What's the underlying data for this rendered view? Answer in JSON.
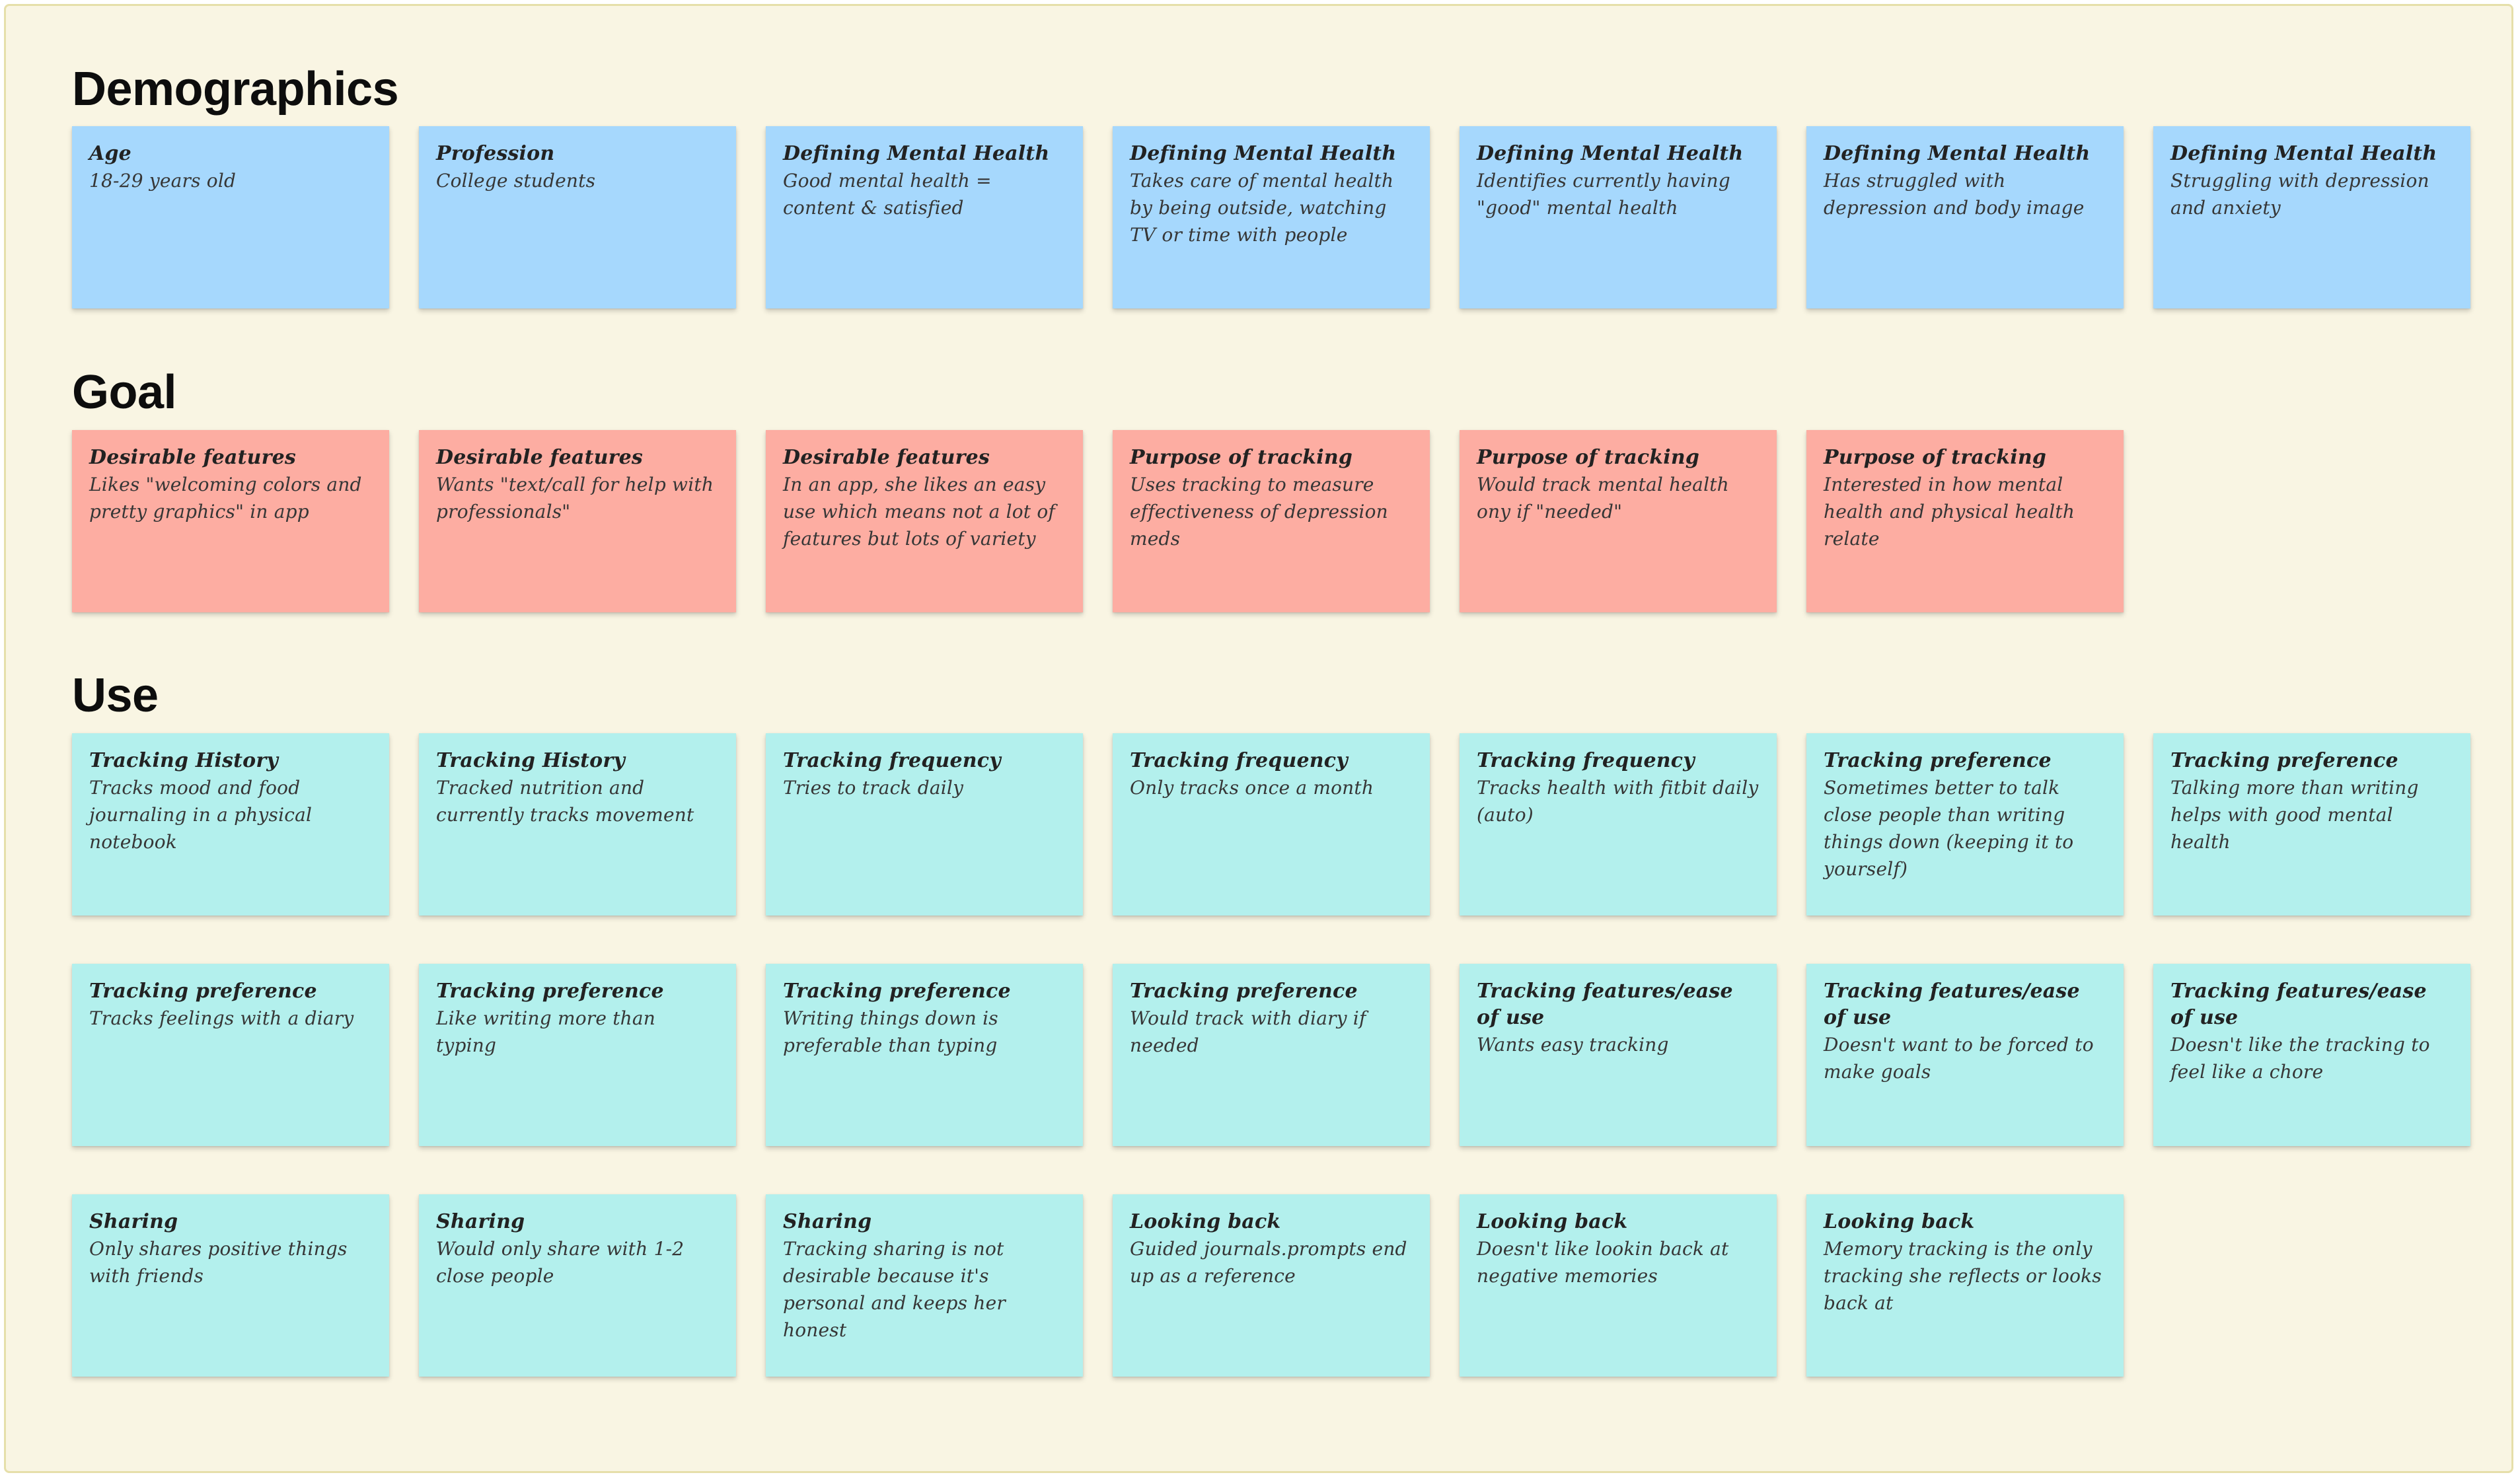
{
  "sections": {
    "demographics": {
      "title": "Demographics",
      "notes": [
        {
          "title": "Age",
          "body": "18-29 years old"
        },
        {
          "title": "Profession",
          "body": "College students"
        },
        {
          "title": "Defining Mental Health",
          "body": "Good mental health = content & satisfied"
        },
        {
          "title": "Defining Mental Health",
          "body": "Takes care of mental health by being outside, watching TV or time with people"
        },
        {
          "title": "Defining Mental Health",
          "body": "Identifies currently having \"good\" mental health"
        },
        {
          "title": "Defining Mental Health",
          "body": "Has struggled with depression and body image"
        },
        {
          "title": "Defining Mental Health",
          "body": "Struggling with depression and anxiety"
        }
      ]
    },
    "goal": {
      "title": "Goal",
      "notes": [
        {
          "title": "Desirable features",
          "body": "Likes \"welcoming colors and pretty graphics\" in app"
        },
        {
          "title": "Desirable features",
          "body": "Wants \"text/call for help with professionals\""
        },
        {
          "title": "Desirable features",
          "body": "In an app, she likes an easy use which means not a lot of features but lots of variety"
        },
        {
          "title": "Purpose of tracking",
          "body": "Uses tracking to measure effectiveness of depression meds"
        },
        {
          "title": "Purpose of tracking",
          "body": "Would track mental health ony if \"needed\""
        },
        {
          "title": "Purpose of tracking",
          "body": "Interested in how mental health and physical health relate"
        }
      ]
    },
    "use": {
      "title": "Use",
      "rows": [
        [
          {
            "title": "Tracking History",
            "body": "Tracks mood and food journaling in a physical notebook"
          },
          {
            "title": "Tracking History",
            "body": "Tracked nutrition and currently tracks movement"
          },
          {
            "title": "Tracking frequency",
            "body": "Tries to track daily"
          },
          {
            "title": "Tracking frequency",
            "body": "Only tracks once a month"
          },
          {
            "title": "Tracking frequency",
            "body": "Tracks health with fitbit daily (auto)"
          },
          {
            "title": "Tracking preference",
            "body": "Sometimes better to talk close people than writing things down (keeping it to yourself)"
          },
          {
            "title": "Tracking preference",
            "body": "Talking more than writing helps with good mental health"
          }
        ],
        [
          {
            "title": "Tracking preference",
            "body": "Tracks feelings with a diary"
          },
          {
            "title": "Tracking preference",
            "body": "Like writing more than typing"
          },
          {
            "title": "Tracking preference",
            "body": "Writing things down is preferable than typing"
          },
          {
            "title": "Tracking preference",
            "body": "Would track with diary if needed"
          },
          {
            "title": "Tracking features/ease of use",
            "body": "Wants easy tracking"
          },
          {
            "title": "Tracking features/ease of use",
            "body": "Doesn't want to be forced to make goals"
          },
          {
            "title": "Tracking features/ease of use",
            "body": "Doesn't like the tracking to feel like a chore"
          }
        ],
        [
          {
            "title": "Sharing",
            "body": "Only shares positive things with friends"
          },
          {
            "title": "Sharing",
            "body": "Would only share with 1-2 close people"
          },
          {
            "title": "Sharing",
            "body": "Tracking sharing is not desirable because it's personal and keeps her honest"
          },
          {
            "title": "Looking back",
            "body": "Guided journals.prompts end up as a reference"
          },
          {
            "title": "Looking back",
            "body": "Doesn't like lookin back at negative memories"
          },
          {
            "title": "Looking back",
            "body": "Memory tracking is the only tracking she reflects or looks back at"
          }
        ]
      ]
    }
  },
  "colors": {
    "board": "#f9f5e3",
    "blue": "#a6d8fd",
    "salmon": "#fdada2",
    "teal": "#b3f0ed"
  }
}
